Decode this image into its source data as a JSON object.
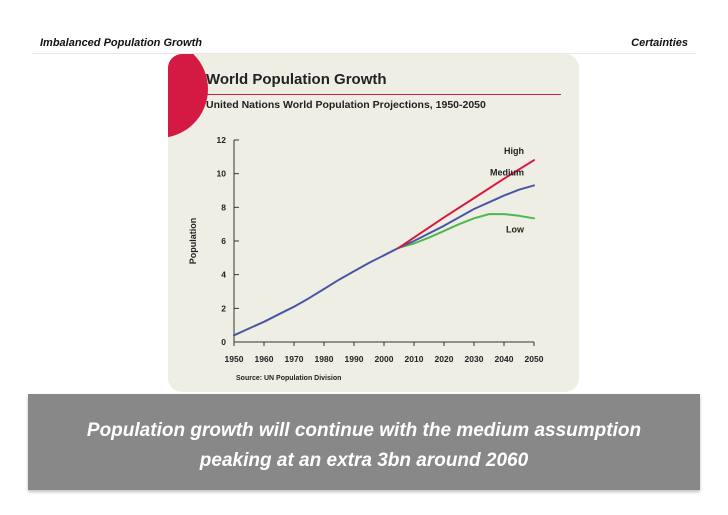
{
  "header": {
    "left_title": "Imbalanced Population Growth",
    "right_title": "Certainties"
  },
  "chart_data": {
    "type": "line",
    "title": "World Population Growth",
    "subtitle": "United Nations World Population Projections, 1950-2050",
    "ylabel": "Population",
    "xlabel": "",
    "source": "Source: UN Population Division",
    "x": [
      1950,
      1960,
      1970,
      1980,
      1990,
      2000,
      2010,
      2020,
      2030,
      2040,
      2050
    ],
    "xlim": [
      1950,
      2050
    ],
    "ylim": [
      0,
      12
    ],
    "yticks": [
      0,
      2,
      4,
      6,
      8,
      10,
      12
    ],
    "series": [
      {
        "name": "High",
        "color": "#d41a43",
        "x": [
          2005,
          2010,
          2020,
          2030,
          2040,
          2050
        ],
        "values": [
          5.6,
          6.2,
          7.4,
          8.55,
          9.7,
          10.8
        ]
      },
      {
        "name": "Medium",
        "color": "#4a56a6",
        "x": [
          1950,
          1955,
          1960,
          1965,
          1970,
          1975,
          1980,
          1985,
          1990,
          1995,
          2000,
          2005,
          2010,
          2015,
          2020,
          2025,
          2030,
          2035,
          2040,
          2045,
          2050
        ],
        "values": [
          0.4,
          0.8,
          1.2,
          1.65,
          2.1,
          2.6,
          3.15,
          3.7,
          4.2,
          4.7,
          5.15,
          5.6,
          6.0,
          6.45,
          6.9,
          7.4,
          7.9,
          8.3,
          8.7,
          9.05,
          9.3
        ]
      },
      {
        "name": "Low",
        "color": "#4db84d",
        "x": [
          2005,
          2010,
          2015,
          2020,
          2025,
          2030,
          2035,
          2040,
          2045,
          2050
        ],
        "values": [
          5.6,
          5.85,
          6.2,
          6.6,
          7.0,
          7.35,
          7.6,
          7.6,
          7.5,
          7.35
        ]
      }
    ]
  },
  "footer": {
    "line1": "Population growth will continue with the medium assumption",
    "line2": "peaking at an extra 3bn around 2060"
  }
}
